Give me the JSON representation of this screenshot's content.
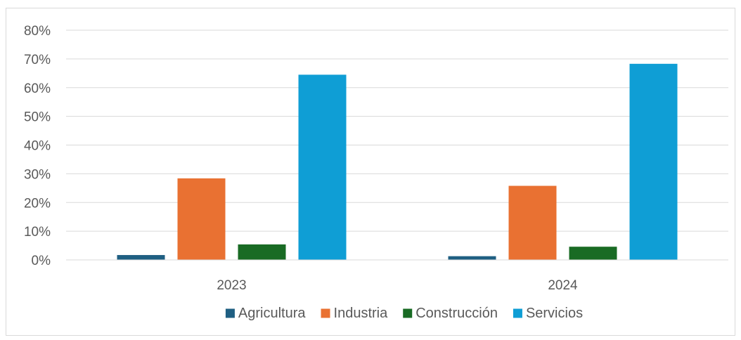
{
  "chart_data": {
    "type": "bar",
    "categories": [
      "2023",
      "2024"
    ],
    "series": [
      {
        "name": "Agricultura",
        "values": [
          1.7,
          1.3
        ],
        "color": "#1f5f82"
      },
      {
        "name": "Industria",
        "values": [
          28.4,
          25.8
        ],
        "color": "#e97132"
      },
      {
        "name": "Construcción",
        "values": [
          5.4,
          4.6
        ],
        "color": "#196b24"
      },
      {
        "name": "Servicios",
        "values": [
          64.5,
          68.3
        ],
        "color": "#0f9ed5"
      }
    ],
    "ylim": [
      0,
      80
    ],
    "y_ticks": [
      "0%",
      "10%",
      "20%",
      "30%",
      "40%",
      "50%",
      "60%",
      "70%",
      "80%"
    ],
    "y_unit": "%",
    "grid": true,
    "legend": "bottom",
    "title": "",
    "xlabel": "",
    "ylabel": ""
  }
}
